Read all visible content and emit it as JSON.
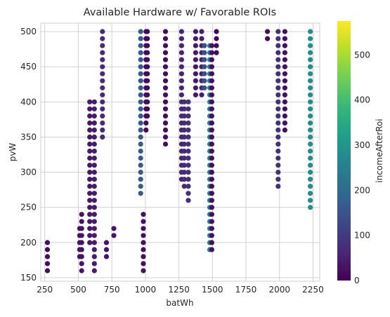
{
  "chart_data": {
    "type": "scatter",
    "title": "Available Hardware w/ Favorable ROIs",
    "xlabel": "batWh",
    "ylabel": "pvW",
    "xlim": [
      220,
      2300
    ],
    "ylim": [
      145,
      512
    ],
    "xticks": [
      250,
      500,
      750,
      1000,
      1250,
      1500,
      1750,
      2000,
      2250
    ],
    "yticks": [
      150,
      200,
      250,
      300,
      350,
      400,
      450,
      500
    ],
    "grid": true,
    "colorbar": {
      "label": "incomeAfterRoi",
      "min": 0,
      "max": 575,
      "ticks": [
        0,
        100,
        200,
        300,
        400,
        500
      ],
      "colormap": "viridis"
    },
    "colors": {
      "viridis": [
        "#440154",
        "#482878",
        "#3e4989",
        "#31688e",
        "#26828e",
        "#1f9e89",
        "#35b779",
        "#6ece58",
        "#b5de2b",
        "#fde725"
      ],
      "grid": "#cccccc",
      "frame": "#cccccc",
      "text": "#262626"
    },
    "series": [
      {
        "x": 270,
        "y_range": [
          160,
          200
        ],
        "step": 10,
        "value": 20
      },
      {
        "x": 510,
        "y_range": [
          180,
          220
        ],
        "step": 10,
        "value": 30
      },
      {
        "x": 525,
        "y_range": [
          160,
          240
        ],
        "step": 10,
        "value": 30
      },
      {
        "x": 585,
        "y_range": [
          200,
          400
        ],
        "step": 10,
        "value": 40
      },
      {
        "x": 620,
        "y_range": [
          160,
          400
        ],
        "step": 10,
        "value": 45
      },
      {
        "x": 680,
        "y_range": [
          350,
          500
        ],
        "step": 10,
        "value": 70
      },
      {
        "x": 710,
        "y_range": [
          180,
          200
        ],
        "step": 10,
        "value": 30
      },
      {
        "x": 765,
        "y_range": [
          210,
          220
        ],
        "step": 10,
        "value": 30
      },
      {
        "x": 965,
        "y_range": [
          270,
          500
        ],
        "step": 10,
        "value": 160
      },
      {
        "x": 985,
        "y_range": [
          160,
          240
        ],
        "step": 10,
        "value": 25
      },
      {
        "x": 1005,
        "y_range": [
          360,
          500
        ],
        "step": 10,
        "value": 15
      },
      {
        "x": 1015,
        "y_range": [
          380,
          500
        ],
        "step": 10,
        "value": 15
      },
      {
        "x": 1150,
        "y_range": [
          340,
          500
        ],
        "step": 10,
        "value": 20
      },
      {
        "x": 1270,
        "y_range": [
          290,
          500
        ],
        "step": 10,
        "value": 60
      },
      {
        "x": 1290,
        "y_range": [
          280,
          400
        ],
        "step": 10,
        "value": 70
      },
      {
        "x": 1320,
        "y_range": [
          260,
          400
        ],
        "step": 10,
        "value": 80
      },
      {
        "x": 1375,
        "y_range": [
          410,
          500
        ],
        "step": 10,
        "value": 40
      },
      {
        "x": 1420,
        "y_range": [
          410,
          500
        ],
        "step": 10,
        "value": 50
      },
      {
        "x": 1440,
        "y_range": [
          420,
          480
        ],
        "step": 10,
        "value": 140
      },
      {
        "x": 1480,
        "y_range": [
          190,
          480
        ],
        "step": 10,
        "value": 250
      },
      {
        "x": 1495,
        "y_range": [
          190,
          480
        ],
        "step": 10,
        "value": 25
      },
      {
        "x": 1530,
        "y_range": [
          470,
          500
        ],
        "step": 10,
        "value": 10
      },
      {
        "x": 1910,
        "y_range": [
          490,
          500
        ],
        "step": 10,
        "value": 20
      },
      {
        "x": 1990,
        "y_range": [
          280,
          500
        ],
        "step": 10,
        "value": 80
      },
      {
        "x": 2040,
        "y_range": [
          360,
          500
        ],
        "step": 10,
        "value": 25
      },
      {
        "x": 2230,
        "y_range": [
          250,
          500
        ],
        "step": 10,
        "value": 280
      }
    ]
  }
}
